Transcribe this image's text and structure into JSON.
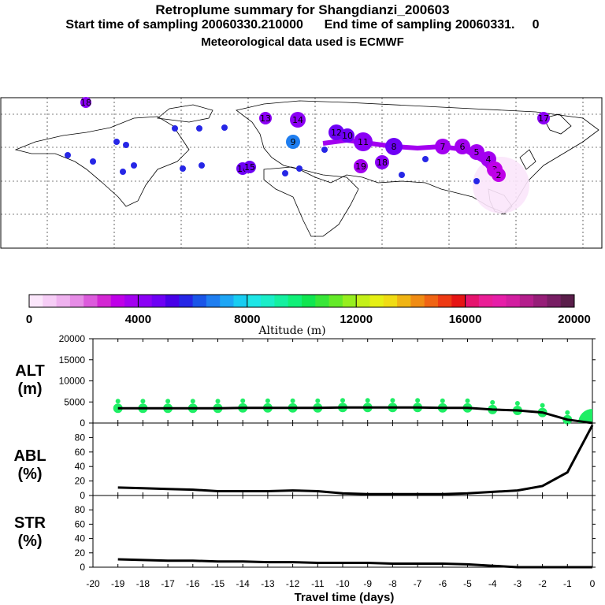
{
  "header": {
    "title": "Retroplume summary for Shangdianzi_200603",
    "sampling": "Start time of sampling 20060330.210000      End time of sampling 20060331.     0",
    "met": "Meteorological data used is ECMWF"
  },
  "colorbar": {
    "title": "Altitude (m)",
    "tick_labels": [
      "0",
      "4000",
      "8000",
      "12000",
      "16000",
      "20000"
    ],
    "colors": [
      "#fbe6fb",
      "#f6cdf6",
      "#efb2ef",
      "#e68ce6",
      "#dc5bdc",
      "#d327d3",
      "#bf00e8",
      "#a300f0",
      "#8b00f5",
      "#6e00f5",
      "#4800e8",
      "#2626e6",
      "#1a55e8",
      "#1f7ef0",
      "#1ea6f5",
      "#18cdf2",
      "#1ee6e6",
      "#1aeec8",
      "#14f0a0",
      "#10f078",
      "#10e650",
      "#38e638",
      "#64ea28",
      "#96ee1e",
      "#c4f018",
      "#e6f014",
      "#f0dc14",
      "#f0b414",
      "#f08c14",
      "#f06414",
      "#ee3a14",
      "#e61414",
      "#e6146e",
      "#ea1e96",
      "#e61ea8",
      "#d21ea0",
      "#b41e8c",
      "#961e78",
      "#781e64",
      "#5a1e4a"
    ]
  },
  "map_labels": [
    {
      "label": "18",
      "color": "#8b00f5"
    },
    {
      "label": "17",
      "color": "#8b00f5"
    },
    {
      "label": "14",
      "color": "#8b00f5"
    },
    {
      "label": "13",
      "color": "#8b00f5"
    },
    {
      "label": "12",
      "color": "#6e00f5"
    },
    {
      "label": "11",
      "color": "#8b00f5"
    },
    {
      "label": "10",
      "color": "#6e00f5"
    },
    {
      "label": "9",
      "color": "#1f7ef0"
    },
    {
      "label": "8",
      "color": "#6e00f5"
    },
    {
      "label": "7",
      "color": "#a300f0"
    },
    {
      "label": "6",
      "color": "#a300f0"
    },
    {
      "label": "5",
      "color": "#a300f0"
    },
    {
      "label": "4",
      "color": "#a300f0"
    },
    {
      "label": "3",
      "color": "#bf00e8"
    },
    {
      "label": "2",
      "color": "#bf00e8"
    },
    {
      "label": "16",
      "color": "#6e00f5"
    },
    {
      "label": "15",
      "color": "#6e00f5"
    },
    {
      "label": "19",
      "color": "#a300f0"
    }
  ],
  "panels": {
    "alt": {
      "label1": "ALT",
      "label2": "(m)"
    },
    "abl": {
      "label1": "ABL",
      "label2": "(%)"
    },
    "str": {
      "label1": "STR",
      "label2": "(%)"
    }
  },
  "chart_data": [
    {
      "type": "line",
      "title": "ALT (m)",
      "ylim": [
        0,
        20000
      ],
      "yticks": [
        "20000",
        "15000",
        "10000",
        "5000",
        "0"
      ],
      "x": [
        0,
        -1,
        -2,
        -3,
        -4,
        -5,
        -6,
        -7,
        -8,
        -9,
        -10,
        -11,
        -12,
        -13,
        -14,
        -15,
        -16,
        -17,
        -18,
        -19
      ],
      "series": [
        {
          "name": "mean altitude",
          "values": [
            0,
            800,
            2500,
            3000,
            3200,
            3600,
            3600,
            3700,
            3700,
            3700,
            3700,
            3600,
            3600,
            3600,
            3600,
            3500,
            3500,
            3500,
            3500,
            3500
          ]
        }
      ],
      "plume_color": "#1eee64"
    },
    {
      "type": "line",
      "title": "ABL (%)",
      "ylim": [
        0,
        100
      ],
      "yticks": [
        "80",
        "60",
        "40",
        "20",
        "0"
      ],
      "x": [
        0,
        -1,
        -2,
        -3,
        -4,
        -5,
        -6,
        -7,
        -8,
        -9,
        -10,
        -11,
        -12,
        -13,
        -14,
        -15,
        -16,
        -17,
        -18,
        -19
      ],
      "series": [
        {
          "name": "ABL fraction",
          "values": [
            97,
            32,
            13,
            7,
            5,
            3,
            2,
            2,
            2,
            2,
            3,
            6,
            7,
            6,
            6,
            6,
            8,
            9,
            10,
            11
          ]
        }
      ]
    },
    {
      "type": "line",
      "title": "STR (%)",
      "ylim": [
        0,
        100
      ],
      "yticks": [
        "80",
        "60",
        "40",
        "20",
        "0"
      ],
      "xlabel": "Travel time (days)",
      "xticks": [
        "-20",
        "-19",
        "-18",
        "-17",
        "-16",
        "-15",
        "-14",
        "-13",
        "-12",
        "-11",
        "-10",
        "-9",
        "-8",
        "-7",
        "-6",
        "-5",
        "-4",
        "-3",
        "-2",
        "-1",
        "0"
      ],
      "x": [
        0,
        -1,
        -2,
        -3,
        -4,
        -5,
        -6,
        -7,
        -8,
        -9,
        -10,
        -11,
        -12,
        -13,
        -14,
        -15,
        -16,
        -17,
        -18,
        -19
      ],
      "series": [
        {
          "name": "stratosphere fraction",
          "values": [
            0,
            0,
            0,
            0,
            2,
            4,
            5,
            5,
            5,
            6,
            6,
            6,
            7,
            7,
            8,
            8,
            9,
            9,
            10,
            11
          ]
        }
      ]
    }
  ]
}
